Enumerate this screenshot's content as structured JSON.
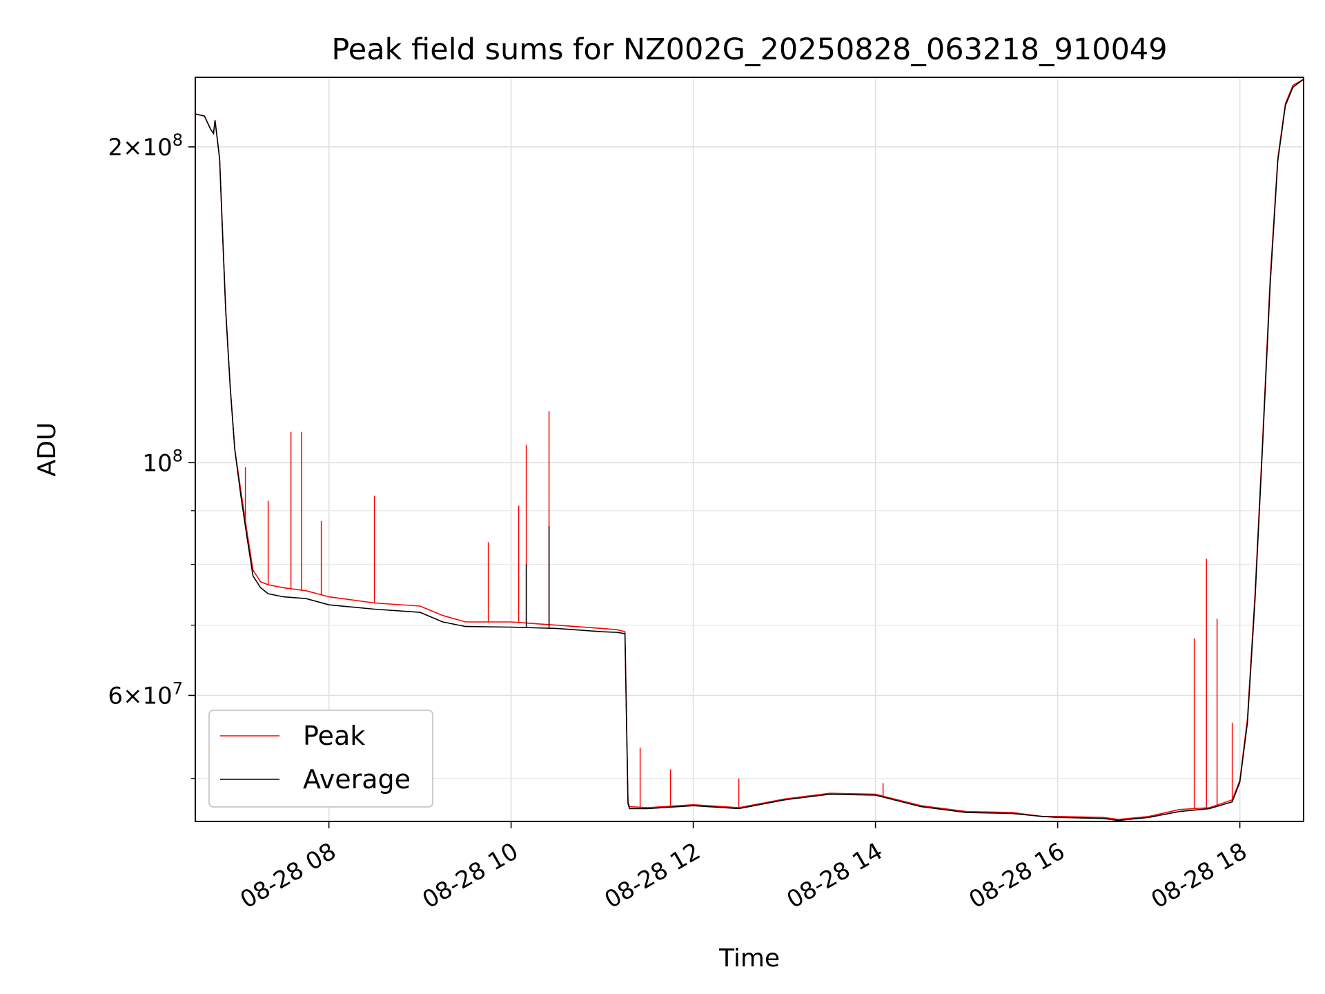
{
  "chart_data": {
    "type": "line",
    "title": "Peak field sums for NZ002G_20250828_063218_910049",
    "xlabel": "Time",
    "ylabel": "ADU",
    "yscale": "log",
    "grid": true,
    "legend_position": "lower-left",
    "x_tick_labels": [
      "08-28 08",
      "08-28 10",
      "08-28 12",
      "08-28 14",
      "08-28 16",
      "08-28 18"
    ],
    "y_tick_labels": [
      {
        "value": 200000000,
        "mantissa": "2",
        "exponent": "8"
      },
      {
        "value": 100000000,
        "mantissa": "",
        "exponent": "8"
      },
      {
        "value": 60000000,
        "mantissa": "6",
        "exponent": "7"
      }
    ],
    "xlim": [
      "2025-08-28 06:32",
      "2025-08-28 18:42"
    ],
    "ylim": [
      45500000,
      233000000
    ],
    "colors": {
      "Peak": "#ff0000",
      "Average": "#000000"
    },
    "series": [
      {
        "name": "Peak",
        "x": [
          "06:32",
          "06:38",
          "06:42",
          "06:44",
          "06:45",
          "06:48",
          "06:50",
          "06:52",
          "06:55",
          "06:58",
          "07:02",
          "07:06",
          "07:10",
          "07:15",
          "07:20",
          "07:30",
          "07:45",
          "08:00",
          "08:30",
          "09:00",
          "09:15",
          "09:30",
          "10:00",
          "10:30",
          "11:00",
          "11:10",
          "11:15",
          "11:17",
          "11:18",
          "11:30",
          "12:00",
          "12:30",
          "13:00",
          "13:30",
          "14:00",
          "14:30",
          "15:00",
          "15:30",
          "15:50",
          "16:00",
          "16:30",
          "16:40",
          "17:00",
          "17:20",
          "17:40",
          "17:55",
          "18:00",
          "18:05",
          "18:10",
          "18:15",
          "18:20",
          "18:25",
          "18:30",
          "18:35",
          "18:42"
        ],
        "y": [
          215000000,
          214000000,
          208000000,
          206000000,
          212000000,
          195000000,
          165000000,
          140000000,
          118000000,
          103000000,
          94000000,
          86000000,
          79000000,
          77000000,
          76500000,
          76000000,
          75500000,
          74500000,
          73500000,
          73000000,
          71500000,
          70500000,
          70500000,
          70000000,
          69500000,
          69300000,
          69000000,
          47500000,
          47000000,
          46900000,
          47200000,
          46900000,
          47800000,
          48400000,
          48300000,
          47100000,
          46500000,
          46400000,
          46000000,
          46000000,
          45900000,
          45700000,
          46000000,
          46700000,
          46900000,
          47700000,
          49800000,
          57000000,
          75000000,
          105000000,
          150000000,
          195000000,
          220000000,
          229000000,
          232000000
        ],
        "spikes": [
          {
            "x": "07:05",
            "y": 99000000
          },
          {
            "x": "07:20",
            "y": 92000000
          },
          {
            "x": "07:35",
            "y": 107000000
          },
          {
            "x": "07:42",
            "y": 107000000
          },
          {
            "x": "07:55",
            "y": 88000000
          },
          {
            "x": "08:30",
            "y": 93000000
          },
          {
            "x": "09:45",
            "y": 84000000
          },
          {
            "x": "10:05",
            "y": 91000000
          },
          {
            "x": "10:10",
            "y": 104000000
          },
          {
            "x": "10:25",
            "y": 112000000
          },
          {
            "x": "11:25",
            "y": 53500000
          },
          {
            "x": "11:45",
            "y": 51000000
          },
          {
            "x": "12:30",
            "y": 50000000
          },
          {
            "x": "14:05",
            "y": 49500000
          },
          {
            "x": "17:30",
            "y": 68000000
          },
          {
            "x": "17:38",
            "y": 81000000
          },
          {
            "x": "17:45",
            "y": 71000000
          },
          {
            "x": "17:55",
            "y": 56500000
          }
        ]
      },
      {
        "name": "Average",
        "x": [
          "06:32",
          "06:38",
          "06:42",
          "06:44",
          "06:45",
          "06:48",
          "06:50",
          "06:52",
          "06:55",
          "06:58",
          "07:02",
          "07:06",
          "07:10",
          "07:15",
          "07:20",
          "07:30",
          "07:45",
          "08:00",
          "08:30",
          "09:00",
          "09:15",
          "09:30",
          "10:00",
          "10:30",
          "11:00",
          "11:10",
          "11:15",
          "11:17",
          "11:18",
          "11:30",
          "12:00",
          "12:30",
          "13:00",
          "13:30",
          "14:00",
          "14:30",
          "15:00",
          "15:30",
          "15:50",
          "16:00",
          "16:30",
          "16:40",
          "17:00",
          "17:20",
          "17:40",
          "17:55",
          "18:00",
          "18:05",
          "18:10",
          "18:15",
          "18:20",
          "18:25",
          "18:30",
          "18:35",
          "18:42"
        ],
        "y": [
          215000000,
          214000000,
          208000000,
          206000000,
          212000000,
          195000000,
          165000000,
          140000000,
          118000000,
          103000000,
          93000000,
          85000000,
          78000000,
          76000000,
          75000000,
          74500000,
          74200000,
          73200000,
          72500000,
          72000000,
          70500000,
          69800000,
          69700000,
          69500000,
          69000000,
          68900000,
          68700000,
          47300000,
          46800000,
          46800000,
          47100000,
          46800000,
          47700000,
          48300000,
          48200000,
          47000000,
          46400000,
          46300000,
          46000000,
          45900000,
          45800000,
          45600000,
          45900000,
          46500000,
          46800000,
          47500000,
          49600000,
          56500000,
          74000000,
          104000000,
          148000000,
          194000000,
          219000000,
          228000000,
          232000000
        ],
        "spikes": [
          {
            "x": "10:10",
            "y": 80000000
          },
          {
            "x": "10:25",
            "y": 87000000
          }
        ]
      }
    ]
  }
}
